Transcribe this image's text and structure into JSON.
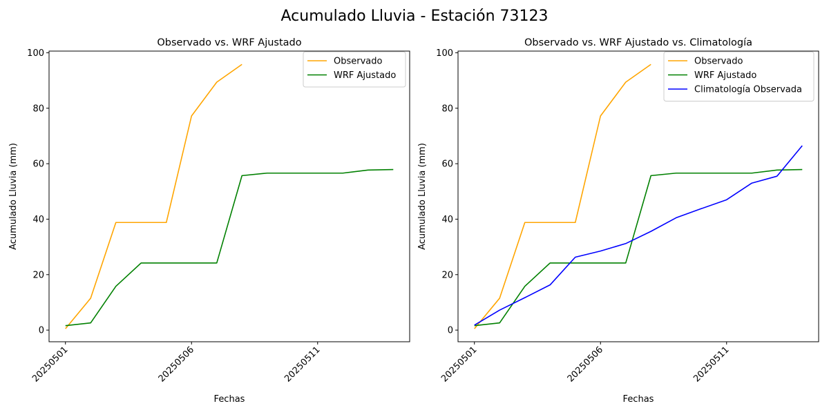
{
  "suptitle": "Acumulado Lluvia - Estación 73123",
  "colors": {
    "Observado": "#ffa500",
    "WRF Ajustado": "#008000",
    "Climatología Observada": "#0000ff"
  },
  "chart_data": [
    {
      "type": "line",
      "title": "Observado vs. WRF Ajustado",
      "xlabel": "Fechas",
      "ylabel": "Acumulado Lluvia (mm)",
      "x": [
        "20250501",
        "20250502",
        "20250503",
        "20250504",
        "20250505",
        "20250506",
        "20250507",
        "20250508",
        "20250509",
        "20250510",
        "20250511",
        "20250512",
        "20250513",
        "20250514"
      ],
      "xticks": [
        "20250501",
        "20250506",
        "20250511"
      ],
      "yticks": [
        0,
        20,
        40,
        60,
        80,
        100
      ],
      "ylim": [
        -4.2,
        100.6
      ],
      "legend": "top-right",
      "series": [
        {
          "name": "Observado",
          "color": "#ffa500",
          "values": [
            0.5,
            11.5,
            38.8,
            38.8,
            38.8,
            77.2,
            89.4,
            95.8,
            null,
            null,
            null,
            null,
            null,
            null
          ]
        },
        {
          "name": "WRF Ajustado",
          "color": "#008000",
          "values": [
            1.6,
            2.6,
            15.8,
            24.2,
            24.2,
            24.2,
            24.2,
            55.7,
            56.6,
            56.6,
            56.6,
            56.6,
            57.7,
            57.9
          ]
        }
      ]
    },
    {
      "type": "line",
      "title": "Observado vs. WRF Ajustado vs. Climatología",
      "xlabel": "Fechas",
      "ylabel": "Acumulado Lluvia (mm)",
      "x": [
        "20250501",
        "20250502",
        "20250503",
        "20250504",
        "20250505",
        "20250506",
        "20250507",
        "20250508",
        "20250509",
        "20250510",
        "20250511",
        "20250512",
        "20250513",
        "20250514"
      ],
      "xticks": [
        "20250501",
        "20250506",
        "20250511"
      ],
      "yticks": [
        0,
        20,
        40,
        60,
        80,
        100
      ],
      "ylim": [
        -4.2,
        100.6
      ],
      "legend": "top-right",
      "series": [
        {
          "name": "Observado",
          "color": "#ffa500",
          "values": [
            0.5,
            11.5,
            38.8,
            38.8,
            38.8,
            77.2,
            89.4,
            95.8,
            null,
            null,
            null,
            null,
            null,
            null
          ]
        },
        {
          "name": "WRF Ajustado",
          "color": "#008000",
          "values": [
            1.6,
            2.6,
            15.8,
            24.2,
            24.2,
            24.2,
            24.2,
            55.7,
            56.6,
            56.6,
            56.6,
            56.6,
            57.7,
            57.9
          ]
        },
        {
          "name": "Climatología Observada",
          "color": "#0000ff",
          "values": [
            1.8,
            7.2,
            11.7,
            16.3,
            26.3,
            28.5,
            31.2,
            35.6,
            40.5,
            43.8,
            47.0,
            53.0,
            55.5,
            66.5
          ]
        }
      ]
    }
  ]
}
